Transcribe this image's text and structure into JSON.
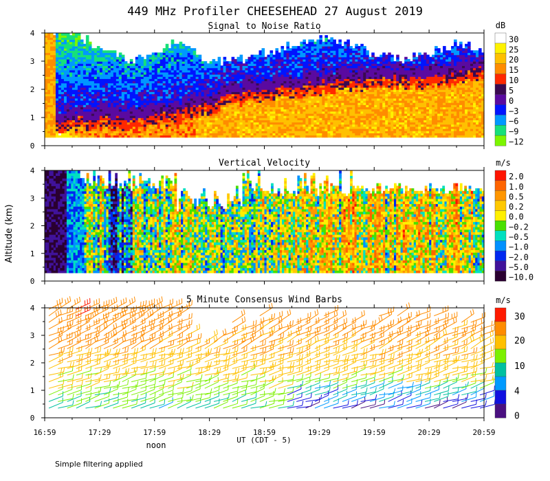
{
  "title": "449 MHz Profiler CHEESEHEAD 27 August 2019",
  "ylabel": "Altitude (km)",
  "xlabel": "UT  (CDT - 5)",
  "noon_label": "noon",
  "footnote": "Simple filtering applied",
  "x_ticks": [
    "16:59",
    "17:29",
    "17:59",
    "18:29",
    "18:59",
    "19:29",
    "19:59",
    "20:29",
    "20:59"
  ],
  "y_ticks": [
    "0",
    "1",
    "2",
    "3",
    "4"
  ],
  "chart_data": [
    {
      "type": "heatmap",
      "title": "Signal to Noise Ratio",
      "unit": "dB",
      "ylim": [
        0,
        4
      ],
      "xlim_hours": [
        16.983,
        20.983
      ],
      "legend_labels": [
        "30",
        "25",
        "20",
        "15",
        "10",
        "5",
        "0",
        "−3",
        "−6",
        "−9",
        "−12"
      ],
      "palette": [
        "#ffffff",
        "#fff200",
        "#ffc000",
        "#ff8c00",
        "#ff2800",
        "#3a0a50",
        "#5a0aa0",
        "#0014ff",
        "#0098ff",
        "#16e07a",
        "#7cf500"
      ],
      "top_cover_km": [
        4.0,
        4.0,
        3.4,
        3.0,
        3.3,
        3.7,
        2.9,
        3.0,
        3.3,
        3.5,
        3.8,
        3.6,
        3.2,
        3.0,
        3.2,
        3.6,
        3.4
      ],
      "inversion_km": [
        0.8,
        0.9,
        1.0,
        0.9,
        1.0,
        1.2,
        1.5,
        1.8,
        2.0,
        2.1,
        2.2,
        2.3,
        2.35,
        2.4,
        2.45,
        2.5,
        2.7
      ]
    },
    {
      "type": "heatmap",
      "title": "Vertical Velocity",
      "unit": "m/s",
      "ylim": [
        0,
        4
      ],
      "legend_labels": [
        "2.0",
        "1.0",
        "0.5",
        "0.2",
        "0.0",
        "−0.2",
        "−0.5",
        "−1.0",
        "−2.0",
        "−5.0",
        "−10.0"
      ],
      "palette": [
        "#ff1400",
        "#ff6400",
        "#ff9600",
        "#ffc800",
        "#fff000",
        "#48e000",
        "#00e0c0",
        "#0090ff",
        "#0028f0",
        "#40129a",
        "#2a0030"
      ]
    },
    {
      "type": "wind_barbs",
      "title": "5 Minute Consensus Wind Barbs",
      "unit": "m/s",
      "ylim": [
        0,
        4
      ],
      "legend_labels": [
        "30",
        "20",
        "10",
        "4",
        "0"
      ],
      "palette": [
        "#ff1a00",
        "#ff8c00",
        "#ffc000",
        "#7cf000",
        "#00c0a0",
        "#009aff",
        "#1010e0",
        "#4a1080"
      ],
      "speed_profile_kmps": [
        [
          0.3,
          8
        ],
        [
          0.8,
          11
        ],
        [
          1.3,
          14
        ],
        [
          1.8,
          17
        ],
        [
          2.3,
          19
        ],
        [
          2.8,
          21
        ],
        [
          3.3,
          22
        ],
        [
          3.8,
          24
        ]
      ]
    }
  ]
}
